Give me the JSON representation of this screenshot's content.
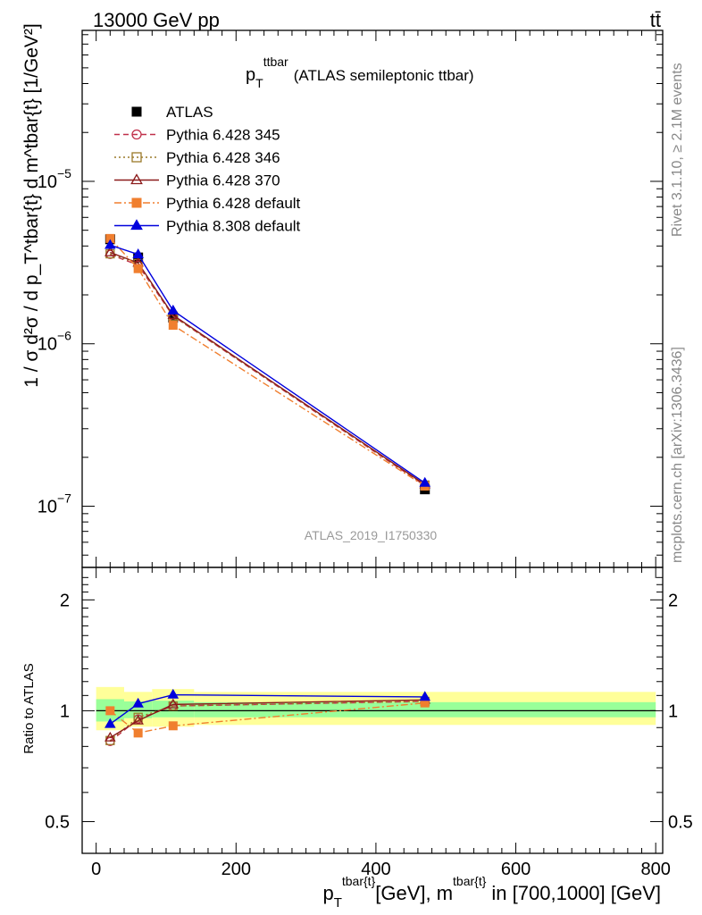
{
  "header": {
    "left": "13000 GeV pp",
    "right": "tt̄"
  },
  "side": {
    "rivet": "Rivet 3.1.10, ≥ 2.1M events",
    "mcplots": "mcplots.cern.ch [arXiv:1306.3436]"
  },
  "chart_data": [
    {
      "type": "line",
      "title": "p_T^ttbar (ATLAS semileptonic ttbar)",
      "title_main": "p",
      "title_sub": "T",
      "title_sup": "ttbar",
      "title_rest": "(ATLAS semileptonic ttbar)",
      "ylabel": "1 / σ d²σ / d p_T^tbar{t} d m^tbar{t} [1/GeV²]",
      "y_scale": "log",
      "ylim": [
        4.2e-08,
        8.5e-05
      ],
      "xlim": [
        -20,
        810
      ],
      "yticks": [
        {
          "value": 1e-07,
          "label": "10",
          "exp": "−7"
        },
        {
          "value": 1e-06,
          "label": "10",
          "exp": "−6"
        },
        {
          "value": 1e-05,
          "label": "10",
          "exp": "−5"
        }
      ],
      "watermark": "ATLAS_2019_I1750330",
      "legend_position": "top-left",
      "x": [
        20,
        60,
        110,
        470
      ],
      "series": [
        {
          "name": "ATLAS",
          "color": "#000000",
          "marker": "square-filled",
          "line": "none",
          "values": [
            4.4e-06,
            3.4e-06,
            1.45e-06,
            1.27e-07
          ]
        },
        {
          "name": "Pythia 6.428 345",
          "color": "#c0304a",
          "marker": "circle-open",
          "line": "dashed",
          "values": [
            3.55e-06,
            3.05e-06,
            1.48e-06,
            1.34e-07
          ]
        },
        {
          "name": "Pythia 6.428 346",
          "color": "#9a7a2a",
          "marker": "square-open",
          "line": "dotted",
          "values": [
            3.58e-06,
            3.12e-06,
            1.48e-06,
            1.35e-07
          ]
        },
        {
          "name": "Pythia 6.428 370",
          "color": "#8b1a1a",
          "marker": "triangle-open",
          "line": "solid",
          "values": [
            3.65e-06,
            3.15e-06,
            1.5e-06,
            1.36e-07
          ]
        },
        {
          "name": "Pythia 6.428 default",
          "color": "#f07f2f",
          "marker": "square-filled",
          "line": "dashdot",
          "values": [
            4.45e-06,
            2.9e-06,
            1.3e-06,
            1.33e-07
          ]
        },
        {
          "name": "Pythia 8.308 default",
          "color": "#0000dd",
          "marker": "triangle-filled",
          "line": "solid",
          "values": [
            4.05e-06,
            3.55e-06,
            1.6e-06,
            1.39e-07
          ]
        }
      ]
    },
    {
      "type": "line",
      "ylabel": "Ratio to ATLAS",
      "xlabel": "p_T^tbar{t} [GeV], m^tbar{t} in [700,1000] [GeV]",
      "xlabel_p": "p",
      "xlabel_p_sub": "T",
      "xlabel_sup1": "tbar{t}",
      "xlabel_mid": "[GeV], m",
      "xlabel_sup2": "tbar{t}",
      "xlabel_end": "in [700,1000] [GeV]",
      "y_scale": "log",
      "ylim": [
        0.41,
        2.45
      ],
      "xlim": [
        -20,
        810
      ],
      "yticks": [
        {
          "value": 0.5,
          "label": "0.5"
        },
        {
          "value": 1,
          "label": "1"
        },
        {
          "value": 2,
          "label": "2"
        }
      ],
      "xticks": [
        0,
        200,
        400,
        600,
        800
      ],
      "bands": [
        {
          "x_from": 0,
          "x_to": 40,
          "green": [
            0.935,
            1.075
          ],
          "yellow": [
            0.885,
            1.16
          ]
        },
        {
          "x_from": 40,
          "x_to": 80,
          "green": [
            0.955,
            1.06
          ],
          "yellow": [
            0.905,
            1.125
          ]
        },
        {
          "x_from": 80,
          "x_to": 140,
          "green": [
            0.96,
            1.065
          ],
          "yellow": [
            0.905,
            1.145
          ]
        },
        {
          "x_from": 140,
          "x_to": 800,
          "green": [
            0.96,
            1.055
          ],
          "yellow": [
            0.915,
            1.125
          ]
        }
      ],
      "x": [
        20,
        60,
        110,
        470
      ],
      "series": [
        {
          "name": "Pythia 6.428 345",
          "color": "#c0304a",
          "marker": "circle-open",
          "line": "dashed",
          "values": [
            0.825,
            0.95,
            1.03,
            1.06
          ]
        },
        {
          "name": "Pythia 6.428 346",
          "color": "#9a7a2a",
          "marker": "square-open",
          "line": "dotted",
          "values": [
            0.83,
            0.96,
            1.03,
            1.06
          ]
        },
        {
          "name": "Pythia 6.428 370",
          "color": "#8b1a1a",
          "marker": "triangle-open",
          "line": "solid",
          "values": [
            0.845,
            0.94,
            1.04,
            1.07
          ]
        },
        {
          "name": "Pythia 6.428 default",
          "color": "#f07f2f",
          "marker": "square-filled",
          "line": "dashdot",
          "values": [
            1.0,
            0.87,
            0.91,
            1.05
          ]
        },
        {
          "name": "Pythia 8.308 default",
          "color": "#0000dd",
          "marker": "triangle-filled",
          "line": "solid",
          "values": [
            0.92,
            1.045,
            1.105,
            1.09
          ]
        }
      ]
    }
  ]
}
